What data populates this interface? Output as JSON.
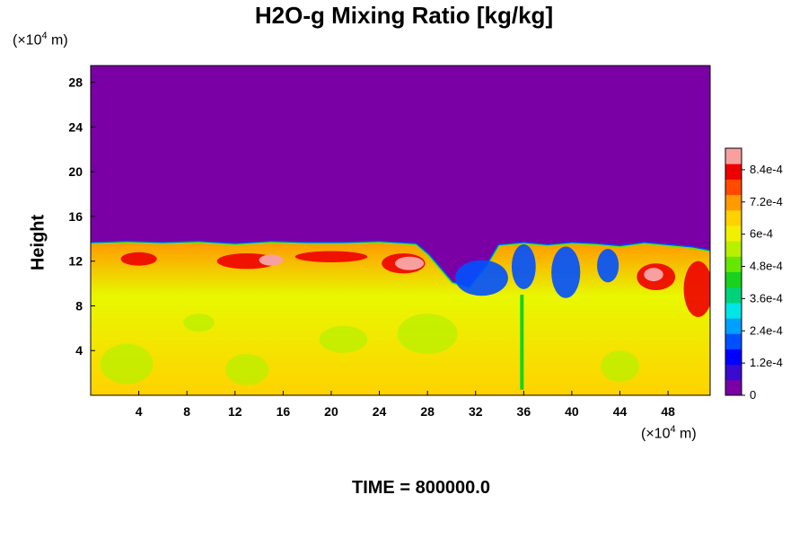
{
  "chart_data": {
    "type": "heatmap",
    "title": "H2O-g Mixing Ratio [kg/kg]",
    "ylabel": "Height",
    "xlabel": "",
    "x_unit": {
      "prefix": "(×10",
      "exp": "4",
      "suffix": " m)"
    },
    "y_unit": {
      "prefix": "(×10",
      "exp": "4",
      "suffix": " m)"
    },
    "xlim": [
      0,
      51.5
    ],
    "ylim": [
      0,
      29.5
    ],
    "x_ticks": [
      4,
      8,
      12,
      16,
      20,
      24,
      28,
      32,
      36,
      40,
      44,
      48
    ],
    "y_ticks": [
      4,
      8,
      12,
      16,
      20,
      24,
      28
    ],
    "colorbar": {
      "range": [
        0,
        0.00092
      ],
      "tick_values": [
        0,
        0.00012,
        0.00024,
        0.00036,
        0.00048,
        0.0006,
        0.00072,
        0.00084
      ],
      "tick_labels": [
        "0",
        "1.2e-4",
        "2.4e-4",
        "3.6e-4",
        "4.8e-4",
        "6e-4",
        "7.2e-4",
        "8.4e-4"
      ],
      "colors": [
        "#7a00a6",
        "#3a0ad0",
        "#0000ff",
        "#0050ff",
        "#00a0ff",
        "#00e6e6",
        "#00d27a",
        "#18d21e",
        "#66e600",
        "#b8f000",
        "#f0f000",
        "#ffd200",
        "#ff9a00",
        "#ff4a00",
        "#ee0000",
        "#f8a0a0"
      ]
    },
    "field_levels": {
      "top": 0,
      "upper_moist": 0.00074,
      "lower_moist": 0.00066,
      "wet_pockets": 0.00056,
      "dry_plumes": 0.0002,
      "saturated_patches": 0.0009
    },
    "moist_layer_top": [
      [
        0,
        13.5
      ],
      [
        3,
        13.6
      ],
      [
        6,
        13.5
      ],
      [
        9,
        13.6
      ],
      [
        12,
        13.4
      ],
      [
        15,
        13.6
      ],
      [
        18,
        13.5
      ],
      [
        21,
        13.5
      ],
      [
        24,
        13.6
      ],
      [
        27,
        13.4
      ],
      [
        28,
        12.5
      ],
      [
        30,
        10.0
      ],
      [
        31.5,
        9.5
      ],
      [
        33,
        11.5
      ],
      [
        34,
        13.3
      ],
      [
        36,
        13.5
      ],
      [
        38,
        13.3
      ],
      [
        40,
        13.5
      ],
      [
        42,
        13.4
      ],
      [
        44,
        13.2
      ],
      [
        46,
        13.5
      ],
      [
        48,
        13.3
      ],
      [
        50,
        13.1
      ],
      [
        51.5,
        12.8
      ]
    ]
  },
  "footer": {
    "time_label": "TIME = 800000.0"
  }
}
